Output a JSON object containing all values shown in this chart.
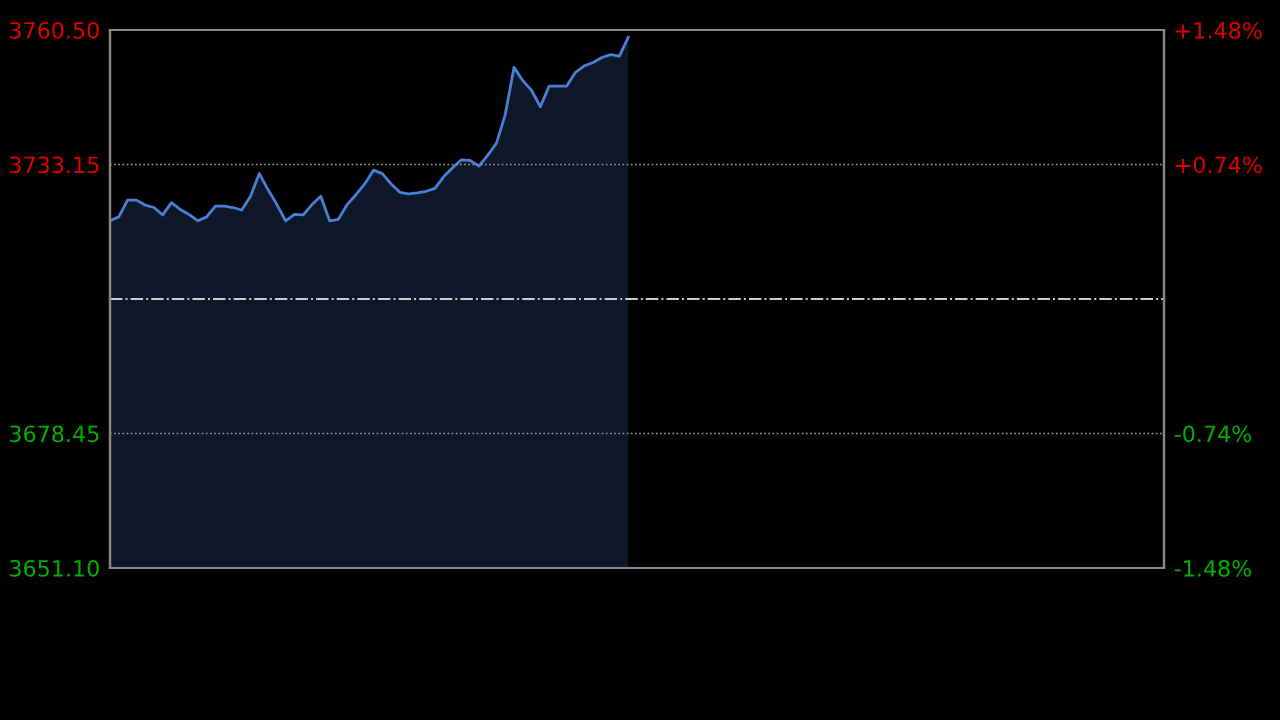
{
  "chart_data": {
    "type": "area",
    "categories": [
      null,
      null,
      null,
      null,
      null,
      null,
      null,
      null,
      null,
      null,
      null,
      null,
      null,
      null,
      null,
      null,
      null,
      null,
      null,
      null,
      null,
      null,
      null,
      null,
      null,
      null,
      null,
      null,
      null,
      null,
      null,
      null,
      null,
      null,
      null,
      null,
      null,
      null,
      null,
      null,
      null,
      null,
      null,
      null,
      null,
      null,
      null,
      null,
      null,
      null,
      null,
      null,
      null,
      null,
      null,
      null,
      null,
      null,
      null,
      null,
      null,
      null,
      null,
      null,
      null,
      null,
      null,
      null,
      null,
      null,
      null,
      null,
      null,
      null,
      null,
      null,
      null,
      null,
      null,
      null,
      null,
      null,
      null,
      null,
      null,
      null,
      null,
      null,
      null,
      null,
      null,
      null,
      null,
      null,
      null,
      null,
      null,
      null,
      null,
      null,
      null,
      null,
      null,
      null,
      null,
      null,
      null,
      null,
      null,
      null,
      null,
      null,
      null,
      null,
      null,
      null,
      null,
      null,
      null,
      null,
      null
    ],
    "series": [
      {
        "color": "#4a7fd6",
        "values": [
          3721.7,
          3722.5,
          3725.9,
          3725.9,
          3724.9,
          3724.4,
          3722.9,
          3725.4,
          3724.0,
          3723.0,
          3721.7,
          3722.5,
          3724.7,
          3724.7,
          3724.4,
          3723.9,
          3726.7,
          3731.3,
          3728.0,
          3725.0,
          3721.7,
          3723.0,
          3722.9,
          3725.0,
          3726.7,
          3721.7,
          3722.0,
          3725.0,
          3727.0,
          3729.2,
          3732.0,
          3731.3,
          3729.2,
          3727.5,
          3727.2,
          3727.4,
          3727.7,
          3728.3,
          3730.7,
          3732.5,
          3734.1,
          3734.0,
          3732.8,
          3735.0,
          3737.5,
          3743.3,
          3752.9,
          3750.2,
          3748.2,
          3744.9,
          3749.1,
          3749.1,
          3749.1,
          3751.9,
          3753.2,
          3753.9,
          3754.9,
          3755.5,
          3755.2,
          3759.0,
          null,
          null,
          null,
          null,
          null,
          null,
          null,
          null,
          null,
          null,
          null,
          null,
          null,
          null,
          null,
          null,
          null,
          null,
          null,
          null,
          null,
          null,
          null,
          null,
          null,
          null,
          null,
          null,
          null,
          null,
          null,
          null,
          null,
          null,
          null,
          null,
          null,
          null,
          null,
          null,
          null,
          null,
          null,
          null,
          null,
          null,
          null,
          null,
          null,
          null,
          null,
          null,
          null,
          null,
          null,
          null,
          null,
          null,
          null,
          null,
          null
        ]
      }
    ],
    "ylim": [
      3651.1,
      3760.5
    ],
    "yticks": [
      {
        "value": 3760.5,
        "label": "3760.50"
      },
      {
        "value": 3733.15,
        "label": "3733.15"
      },
      {
        "value": 3705.8,
        "label": null
      },
      {
        "value": 3678.45,
        "label": "3678.45"
      },
      {
        "value": 3651.1,
        "label": "3651.10"
      }
    ],
    "y2lim": [
      -1.48,
      1.48
    ],
    "y2ticks": [
      {
        "value": 1.48,
        "label": "+1.48%"
      },
      {
        "value": 0.74,
        "label": "+0.74%"
      },
      {
        "value": -0.74,
        "label": "-0.74%"
      },
      {
        "value": -1.48,
        "label": "-1.48%"
      }
    ],
    "ref_lines": [
      {
        "axis": "y",
        "value": 3705.8,
        "label": null,
        "color": "#cccccc",
        "line_style": "dashdot"
      }
    ],
    "grid": "y",
    "tick_labels": "y",
    "legend": false
  }
}
